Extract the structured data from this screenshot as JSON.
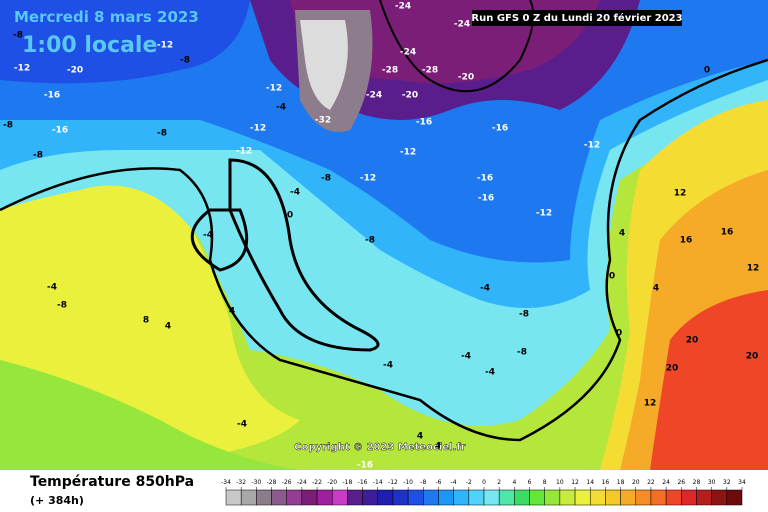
{
  "header": {
    "date": "Mercredi 8 mars 2023",
    "time": "1:00 locale",
    "run": "Run GFS 0 Z du Lundi 20 février 2023",
    "copyright": "Copyright © 2023 Meteociel.fr"
  },
  "footer": {
    "title": "Température 850hPa",
    "lead": "(+ 384h)"
  },
  "colorbar": {
    "ticks": [
      -34,
      -32,
      -30,
      -28,
      -26,
      -24,
      -22,
      -20,
      -18,
      -16,
      -14,
      -12,
      -10,
      -8,
      -6,
      -4,
      -2,
      0,
      2,
      4,
      6,
      8,
      10,
      12,
      14,
      16,
      18,
      20,
      22,
      24,
      26,
      28,
      30,
      32,
      34
    ],
    "colors": [
      "#c8c8c8",
      "#a8a8a8",
      "#8c7c8c",
      "#8c5a8c",
      "#963c96",
      "#7a1e78",
      "#a01ea0",
      "#c83cc8",
      "#5a1e8c",
      "#3c1e9b",
      "#1e1eaf",
      "#1e32c8",
      "#1e50e6",
      "#1e78f0",
      "#1e96f5",
      "#32b4fa",
      "#50d2fa",
      "#78e6f0",
      "#50e6aa",
      "#3cdc64",
      "#64e63c",
      "#96e63c",
      "#c8eb3c",
      "#ebf03c",
      "#f5dc32",
      "#f5c828",
      "#f5aa28",
      "#f58c28",
      "#f56e28",
      "#f04628",
      "#dc2828",
      "#b41e1e",
      "#8c1414",
      "#6e0a0a"
    ]
  },
  "map_labels": [
    -8,
    -12,
    -20,
    -16,
    -8,
    -8,
    -16,
    -8,
    -12,
    -8,
    -12,
    -4,
    -12,
    -4,
    0,
    -4,
    -12,
    -8,
    -12,
    -8,
    -12,
    -16,
    -16,
    -12,
    -16,
    -16,
    -12,
    -20,
    -24,
    -28,
    -28,
    -24,
    -20,
    -32,
    -24,
    -24,
    0,
    4,
    12,
    16,
    16,
    12,
    0,
    4,
    0,
    20,
    20,
    12,
    20,
    8,
    4,
    4,
    -4,
    -4,
    -8,
    -4,
    -4,
    -8,
    -4,
    4,
    4,
    -16,
    -8,
    -4
  ]
}
